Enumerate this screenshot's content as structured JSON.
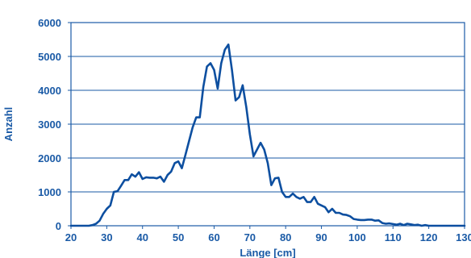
{
  "chart_data": {
    "type": "line",
    "title": "",
    "xlabel": "Länge [cm]",
    "ylabel": "Anzahl",
    "xlim": [
      20,
      130
    ],
    "ylim": [
      0,
      6000
    ],
    "grid": true,
    "x_ticks": [
      "20",
      "30",
      "40",
      "50",
      "60",
      "70",
      "80",
      "90",
      "100",
      "110",
      "120",
      "130"
    ],
    "y_ticks": [
      "0",
      "1000",
      "2000",
      "3000",
      "4000",
      "5000",
      "6000"
    ],
    "colors": {
      "line": "#0d4fa0",
      "grid": "#1a5aa6",
      "text": "#1a5aa6",
      "frame": "#1a5aa6"
    },
    "series": [
      {
        "x": [
          20,
          21,
          22,
          23,
          24,
          25,
          26,
          27,
          28,
          29,
          30,
          31,
          32,
          33,
          34,
          35,
          36,
          37,
          38,
          39,
          40,
          41,
          42,
          43,
          44,
          45,
          46,
          47,
          48,
          49,
          50,
          51,
          52,
          53,
          54,
          55,
          56,
          57,
          58,
          59,
          60,
          61,
          62,
          63,
          64,
          65,
          66,
          67,
          68,
          69,
          70,
          71,
          72,
          73,
          74,
          75,
          76,
          77,
          78,
          79,
          80,
          81,
          82,
          83,
          84,
          85,
          86,
          87,
          88,
          89,
          90,
          91,
          92,
          93,
          94,
          95,
          96,
          97,
          98,
          99,
          100,
          101,
          102,
          103,
          104,
          105,
          106,
          107,
          108,
          109,
          110,
          111,
          112,
          113,
          114,
          115,
          116,
          117,
          118,
          119,
          120,
          121,
          122,
          123,
          124,
          125,
          126,
          127,
          128,
          129,
          130
        ],
        "y": [
          0,
          0,
          0,
          0,
          0,
          0,
          20,
          60,
          150,
          350,
          500,
          600,
          1000,
          1020,
          1180,
          1350,
          1350,
          1520,
          1450,
          1580,
          1380,
          1430,
          1420,
          1420,
          1400,
          1450,
          1300,
          1500,
          1600,
          1850,
          1900,
          1700,
          2100,
          2500,
          2900,
          3200,
          3200,
          4100,
          4700,
          4800,
          4600,
          4050,
          4800,
          5200,
          5350,
          4600,
          3700,
          3800,
          4150,
          3500,
          2700,
          2050,
          2250,
          2450,
          2250,
          1850,
          1200,
          1400,
          1420,
          1000,
          850,
          850,
          950,
          850,
          800,
          850,
          700,
          700,
          850,
          650,
          600,
          550,
          400,
          500,
          380,
          380,
          330,
          320,
          280,
          200,
          180,
          170,
          170,
          180,
          180,
          150,
          160,
          80,
          60,
          70,
          50,
          30,
          60,
          20,
          60,
          40,
          20,
          30,
          0,
          20,
          0,
          0,
          0,
          0,
          0,
          0,
          0,
          0,
          0,
          0,
          0
        ]
      }
    ]
  }
}
